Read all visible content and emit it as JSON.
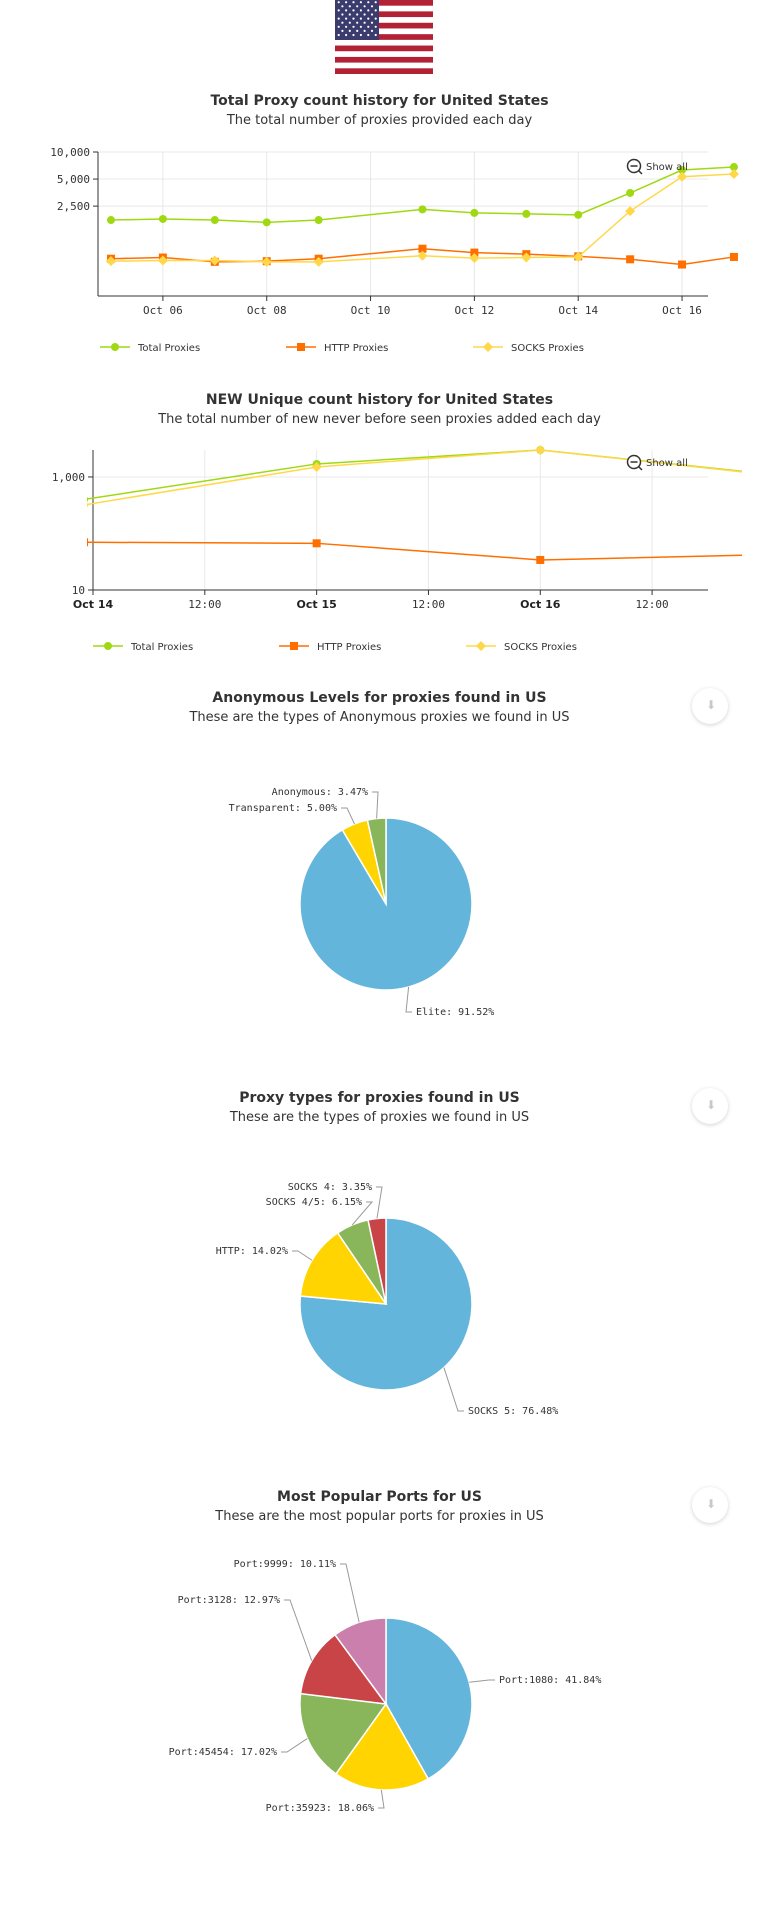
{
  "colors": {
    "total": "#a0d911",
    "http": "#ff6f00",
    "socks": "#ffd84a",
    "blue": "#64b5dc",
    "yellow": "#ffd400",
    "green": "#8ab65b",
    "red": "#c84446",
    "pink": "#cb7fad",
    "grid": "#e8e8e8"
  },
  "icons": {
    "flag": "us-flag-icon",
    "zoom_out": "zoom-out-icon",
    "download": "download-icon"
  },
  "chart_data": [
    {
      "type": "line",
      "title": "Total Proxy count history for United States",
      "subtitle": "The total number of proxies provided each day",
      "y_scale": "log",
      "ylim": [
        250,
        10000
      ],
      "y_ticks": [
        {
          "value": 10000,
          "label": "10,000"
        },
        {
          "value": 5000,
          "label": "5,000"
        },
        {
          "value": 2500,
          "label": "2,500"
        }
      ],
      "x_range": [
        4.75,
        16.5
      ],
      "x_ticks": [
        {
          "value": 6,
          "label": "Oct 06"
        },
        {
          "value": 8,
          "label": "Oct 08"
        },
        {
          "value": 10,
          "label": "Oct 10"
        },
        {
          "value": 12,
          "label": "Oct 12"
        },
        {
          "value": 14,
          "label": "Oct 14"
        },
        {
          "value": 16,
          "label": "Oct 16"
        }
      ],
      "x": [
        5,
        6,
        7,
        8,
        9,
        10,
        11,
        12,
        13,
        14,
        15,
        16,
        17
      ],
      "series": [
        {
          "name": "Total Proxies",
          "color_key": "total",
          "marker": "circle",
          "values": [
            1750,
            1800,
            1750,
            1650,
            1750,
            null,
            2300,
            2100,
            2050,
            2000,
            3500,
            6300,
            6800
          ]
        },
        {
          "name": "HTTP Proxies",
          "color_key": "http",
          "marker": "square",
          "values": [
            650,
            670,
            600,
            610,
            650,
            null,
            840,
            760,
            730,
            690,
            640,
            560,
            680
          ]
        },
        {
          "name": "SOCKS Proxies",
          "color_key": "socks",
          "marker": "diamond",
          "values": [
            610,
            620,
            620,
            600,
            600,
            null,
            700,
            660,
            670,
            680,
            2200,
            5300,
            5700
          ]
        }
      ],
      "show_all_label": "Show all",
      "legend_position": "bottom"
    },
    {
      "type": "line",
      "title": "NEW Unique count history for United States",
      "subtitle": "The total number of new never before seen proxies added each day",
      "y_scale": "log",
      "ylim": [
        10,
        3000
      ],
      "y_ticks": [
        {
          "value": 1000,
          "label": "1,000"
        },
        {
          "value": 10,
          "label": "10"
        }
      ],
      "x_range": [
        0,
        2.75
      ],
      "x_ticks": [
        {
          "value": 0,
          "label": "Oct 14",
          "bold": true
        },
        {
          "value": 0.5,
          "label": "12:00"
        },
        {
          "value": 1,
          "label": "Oct 15",
          "bold": true
        },
        {
          "value": 1.5,
          "label": "12:00"
        },
        {
          "value": 2,
          "label": "Oct 16",
          "bold": true
        },
        {
          "value": 2.5,
          "label": "12:00"
        }
      ],
      "x": [
        -0.04,
        1,
        2,
        3
      ],
      "series": [
        {
          "name": "Total Proxies",
          "color_key": "total",
          "marker": "circle",
          "values": [
            400,
            1700,
            3000,
            1150
          ]
        },
        {
          "name": "HTTP Proxies",
          "color_key": "http",
          "marker": "square",
          "values": [
            70,
            67,
            34,
            42
          ]
        },
        {
          "name": "SOCKS Proxies",
          "color_key": "socks",
          "marker": "diamond",
          "values": [
            320,
            1500,
            3000,
            1120
          ]
        }
      ],
      "show_all_label": "Show all",
      "legend_position": "bottom"
    },
    {
      "type": "pie",
      "title": "Anonymous Levels for proxies found in US",
      "subtitle": "These are the types of Anonymous proxies we found in US",
      "slices": [
        {
          "label": "Elite: 91.52%",
          "value": 91.52,
          "color_key": "blue"
        },
        {
          "label": "Transparent: 5.00%",
          "value": 5.0,
          "color_key": "yellow"
        },
        {
          "label": "Anonymous: 3.47%",
          "value": 3.47,
          "color_key": "green"
        }
      ]
    },
    {
      "type": "pie",
      "title": "Proxy types for proxies found in US",
      "subtitle": "These are the types of proxies we found in US",
      "slices": [
        {
          "label": "SOCKS 5: 76.48%",
          "value": 76.48,
          "color_key": "blue"
        },
        {
          "label": "HTTP: 14.02%",
          "value": 14.02,
          "color_key": "yellow"
        },
        {
          "label": "SOCKS 4/5: 6.15%",
          "value": 6.15,
          "color_key": "green"
        },
        {
          "label": "SOCKS 4: 3.35%",
          "value": 3.35,
          "color_key": "red"
        }
      ]
    },
    {
      "type": "pie",
      "title": "Most Popular Ports for US",
      "subtitle": "These are the most popular ports for proxies in US",
      "slices": [
        {
          "label": "Port:1080: 41.84%",
          "value": 41.84,
          "color_key": "blue"
        },
        {
          "label": "Port:35923: 18.06%",
          "value": 18.06,
          "color_key": "yellow"
        },
        {
          "label": "Port:45454: 17.02%",
          "value": 17.02,
          "color_key": "green"
        },
        {
          "label": "Port:3128: 12.97%",
          "value": 12.97,
          "color_key": "red"
        },
        {
          "label": "Port:9999: 10.11%",
          "value": 10.11,
          "color_key": "pink"
        }
      ]
    }
  ]
}
